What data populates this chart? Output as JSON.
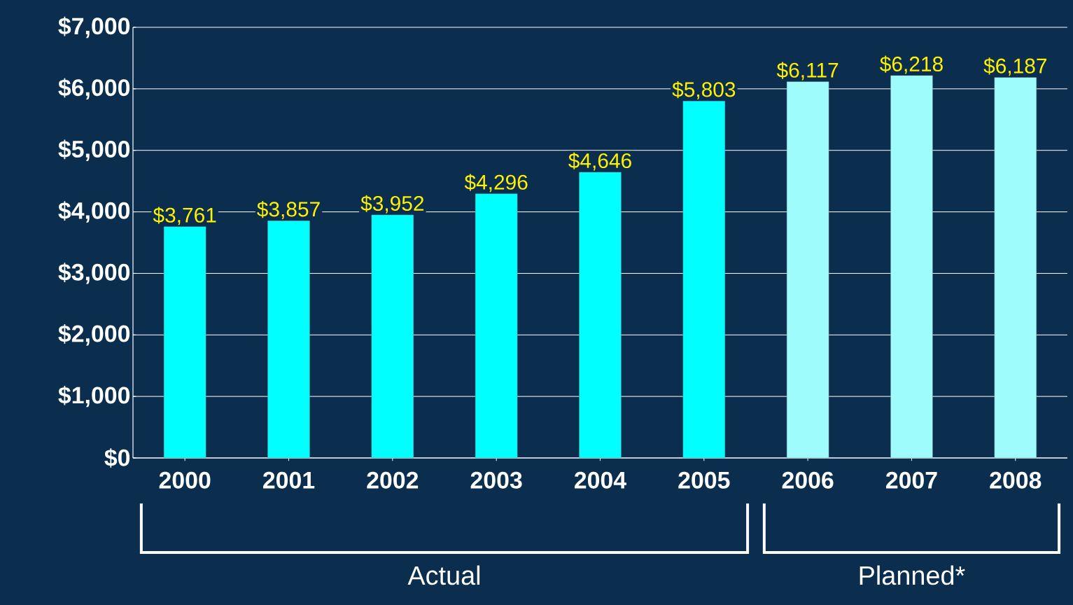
{
  "chart_data": {
    "type": "bar",
    "categories": [
      "2000",
      "2001",
      "2002",
      "2003",
      "2004",
      "2005",
      "2006",
      "2007",
      "2008"
    ],
    "values": [
      3761,
      3857,
      3952,
      4296,
      4646,
      5803,
      6117,
      6218,
      6187
    ],
    "colors": [
      "#00ffff",
      "#00ffff",
      "#00ffff",
      "#00ffff",
      "#00ffff",
      "#00ffff",
      "#9ffcfc",
      "#9ffcfc",
      "#9ffcfc"
    ],
    "value_labels": [
      "$3,761",
      "$3,857",
      "$3,952",
      "$4,296",
      "$4,646",
      "$5,803",
      "$6,117",
      "$6,218",
      "$6,187"
    ],
    "ylim": [
      0,
      7000
    ],
    "yticks": [
      {
        "value": 0,
        "label": "$0"
      },
      {
        "value": 1000,
        "label": "$1,000"
      },
      {
        "value": 2000,
        "label": "$2,000"
      },
      {
        "value": 3000,
        "label": "$3,000"
      },
      {
        "value": 4000,
        "label": "$4,000"
      },
      {
        "value": 5000,
        "label": "$5,000"
      },
      {
        "value": 6000,
        "label": "$6,000"
      },
      {
        "value": 7000,
        "label": "$7,000"
      }
    ],
    "grid": "y",
    "annotations": [
      "Actual",
      "Planned*"
    ]
  }
}
